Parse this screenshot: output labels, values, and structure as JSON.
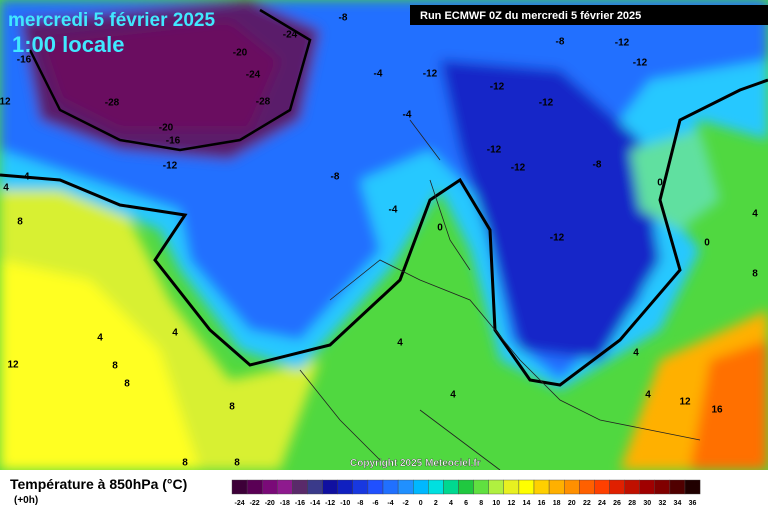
{
  "map": {
    "date": "mercredi 5 février 2025",
    "local_time": "1:00 locale",
    "run": "Run ECMWF 0Z du mercredi 5 février 2025",
    "copyright": "Copyright 2025 Meteociel.fr",
    "contour_labels": [
      -8,
      -24,
      -20,
      -24,
      -28,
      -28,
      -16,
      12,
      -20,
      -16,
      -12,
      -4,
      -4,
      -12,
      -8,
      -12,
      -12,
      -12,
      -12,
      -4,
      -12,
      -12,
      -8,
      -8,
      -4,
      0,
      -12,
      0,
      4,
      0,
      8,
      4,
      8,
      4,
      4,
      12,
      8,
      8,
      8,
      4,
      4,
      4,
      4,
      12,
      16,
      8,
      8
    ]
  },
  "legend": {
    "title": "Température à 850hPa (°C)",
    "lead": "(+0h)",
    "labels": [
      -24,
      -22,
      -20,
      -18,
      -16,
      -14,
      -12,
      -10,
      -8,
      -6,
      -4,
      -2,
      0,
      2,
      4,
      6,
      8,
      10,
      12,
      14,
      16,
      18,
      20,
      22,
      24,
      26,
      28,
      30,
      32,
      34,
      36
    ],
    "colors": [
      "#3d0038",
      "#5a0055",
      "#7a0a78",
      "#8e1a8e",
      "#5a2a6a",
      "#3a3a8a",
      "#1010a0",
      "#1020c0",
      "#1838e0",
      "#2050ff",
      "#2070ff",
      "#2090ff",
      "#00b8ff",
      "#00e0e0",
      "#00d890",
      "#20c840",
      "#60e040",
      "#b0f040",
      "#e8f020",
      "#ffff00",
      "#ffd000",
      "#ffb000",
      "#ff9000",
      "#ff6000",
      "#ff4000",
      "#e02000",
      "#c01000",
      "#a00000",
      "#800000",
      "#500000",
      "#200000"
    ]
  }
}
